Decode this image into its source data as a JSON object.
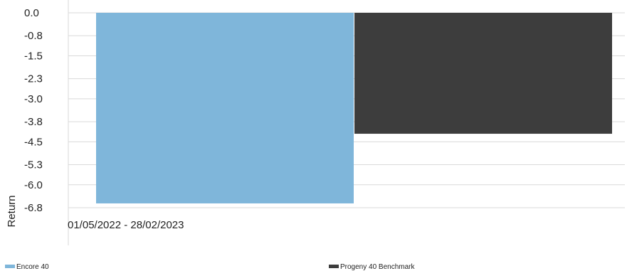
{
  "chart_data": {
    "type": "bar",
    "title": "",
    "xlabel": "",
    "ylabel": "Return",
    "categories": [
      "01/05/2022 - 28/02/2023"
    ],
    "series": [
      {
        "name": "Encore 40",
        "values": [
          -6.65
        ],
        "color": "#7fb6da"
      },
      {
        "name": "Progeny 40 Benchmark",
        "values": [
          -4.22
        ],
        "color": "#3d3d3d"
      }
    ],
    "yticks": [
      "0.0",
      "-0.8",
      "-1.5",
      "-2.3",
      "-3.0",
      "-3.8",
      "-4.5",
      "-5.3",
      "-6.0",
      "-6.8"
    ],
    "ylim": [
      -6.8,
      0
    ],
    "grid": true,
    "legend_position": "bottom"
  }
}
